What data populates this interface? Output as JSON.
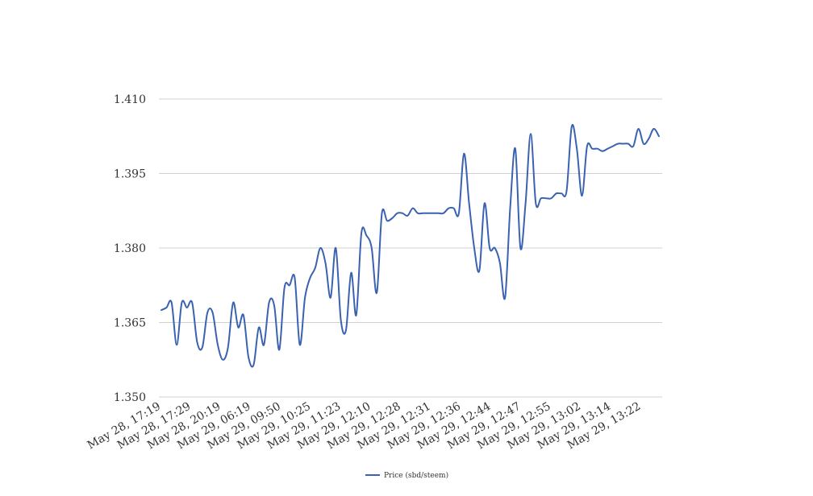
{
  "chart_data": {
    "type": "line",
    "title": "",
    "xlabel": "",
    "ylabel": "",
    "ylim": [
      1.35,
      1.41
    ],
    "y_ticks": [
      "1.350",
      "1.365",
      "1.380",
      "1.395",
      "1.410"
    ],
    "x_tick_labels": [
      "May 28, 17:19",
      "May 28, 17:29",
      "May 28, 20:19",
      "May 29, 06:19",
      "May 29, 09:50",
      "May 29, 10:25",
      "May 29, 11:23",
      "May 29, 12:10",
      "May 29, 12:28",
      "May 29, 12:31",
      "May 29, 12:36",
      "May 29, 12:44",
      "May 29, 12:47",
      "May 29, 12:55",
      "May 29, 13:02",
      "May 29, 13:14",
      "May 29, 13:22"
    ],
    "grid": true,
    "legend_position": "bottom",
    "colors": {
      "series": "#3a62b0",
      "grid": "#d0d0d0"
    },
    "series": [
      {
        "name": "Price (sbd/steem)",
        "values": [
          1.3675,
          1.368,
          1.369,
          1.3605,
          1.369,
          1.368,
          1.369,
          1.361,
          1.36,
          1.367,
          1.367,
          1.3605,
          1.3575,
          1.36,
          1.369,
          1.364,
          1.3665,
          1.358,
          1.3565,
          1.364,
          1.3605,
          1.369,
          1.3685,
          1.3595,
          1.372,
          1.3725,
          1.374,
          1.3605,
          1.37,
          1.374,
          1.376,
          1.38,
          1.377,
          1.37,
          1.38,
          1.3655,
          1.3635,
          1.375,
          1.3665,
          1.383,
          1.3825,
          1.38,
          1.371,
          1.387,
          1.3855,
          1.386,
          1.387,
          1.387,
          1.3865,
          1.388,
          1.387,
          1.387,
          1.387,
          1.387,
          1.387,
          1.387,
          1.388,
          1.388,
          1.387,
          1.399,
          1.389,
          1.38,
          1.3755,
          1.389,
          1.38,
          1.38,
          1.377,
          1.37,
          1.388,
          1.4,
          1.38,
          1.389,
          1.403,
          1.389,
          1.39,
          1.39,
          1.39,
          1.391,
          1.391,
          1.3915,
          1.4045,
          1.4,
          1.3905,
          1.4005,
          1.4,
          1.4,
          1.3995,
          1.4,
          1.4005,
          1.401,
          1.401,
          1.401,
          1.4005,
          1.404,
          1.401,
          1.402,
          1.404,
          1.4025
        ]
      }
    ]
  }
}
